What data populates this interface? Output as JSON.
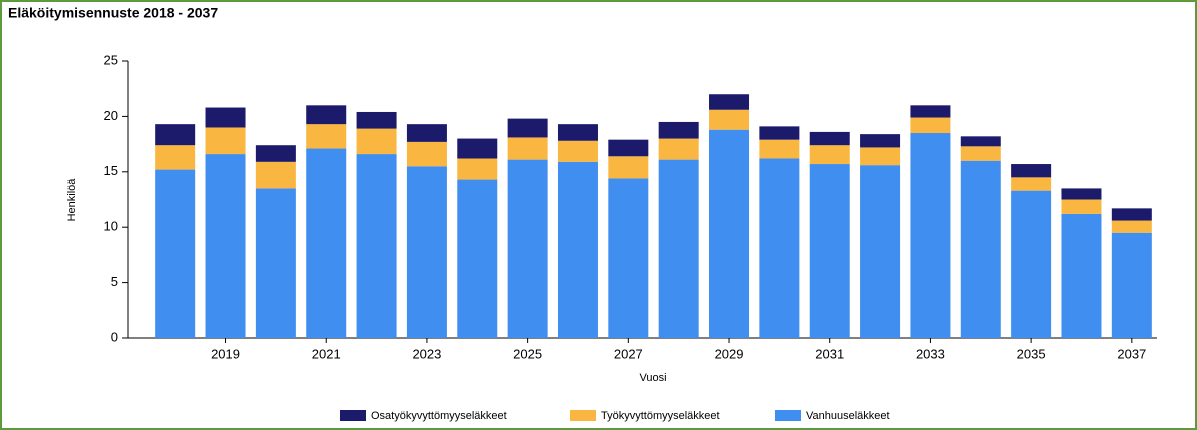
{
  "chart_data": {
    "type": "stacked_bar",
    "title": "Eläköitymisennuste 2018 - 2037",
    "x_label": "Vuosi",
    "y_label": "Henkilöä",
    "categories": [
      null,
      "2019",
      null,
      "2021",
      null,
      "2023",
      null,
      "2025",
      null,
      "2027",
      null,
      "2029",
      null,
      "2031",
      null,
      "2033",
      null,
      "2035",
      null,
      "2037"
    ],
    "series": [
      {
        "name": "Osatyökyvyttömyyseläkkeet",
        "color": "#1b1a6b",
        "values": [
          1.9,
          1.8,
          1.5,
          1.7,
          1.5,
          1.6,
          1.8,
          1.7,
          1.5,
          1.5,
          1.5,
          1.4,
          1.2,
          1.2,
          1.2,
          1.1,
          0.9,
          1.2,
          1.0,
          1.1
        ]
      },
      {
        "name": "Työkyvyttömyyseläkkeet",
        "color": "#f9b640",
        "values": [
          2.2,
          2.4,
          2.4,
          2.2,
          2.3,
          2.2,
          1.9,
          2.0,
          1.9,
          2.0,
          1.9,
          1.8,
          1.7,
          1.7,
          1.6,
          1.4,
          1.3,
          1.2,
          1.3,
          1.1
        ]
      },
      {
        "name": "Vanhuuseläkkeet",
        "color": "#3f8ef0",
        "values": [
          15.2,
          16.6,
          13.5,
          17.1,
          16.6,
          15.5,
          14.3,
          16.1,
          15.9,
          14.4,
          16.1,
          18.8,
          16.2,
          15.7,
          15.6,
          18.5,
          16.0,
          13.3,
          11.2,
          9.5
        ]
      }
    ],
    "ylim": [
      0,
      25
    ],
    "yticks": [
      0,
      5,
      10,
      15,
      20,
      25
    ],
    "legend": "bottom"
  }
}
